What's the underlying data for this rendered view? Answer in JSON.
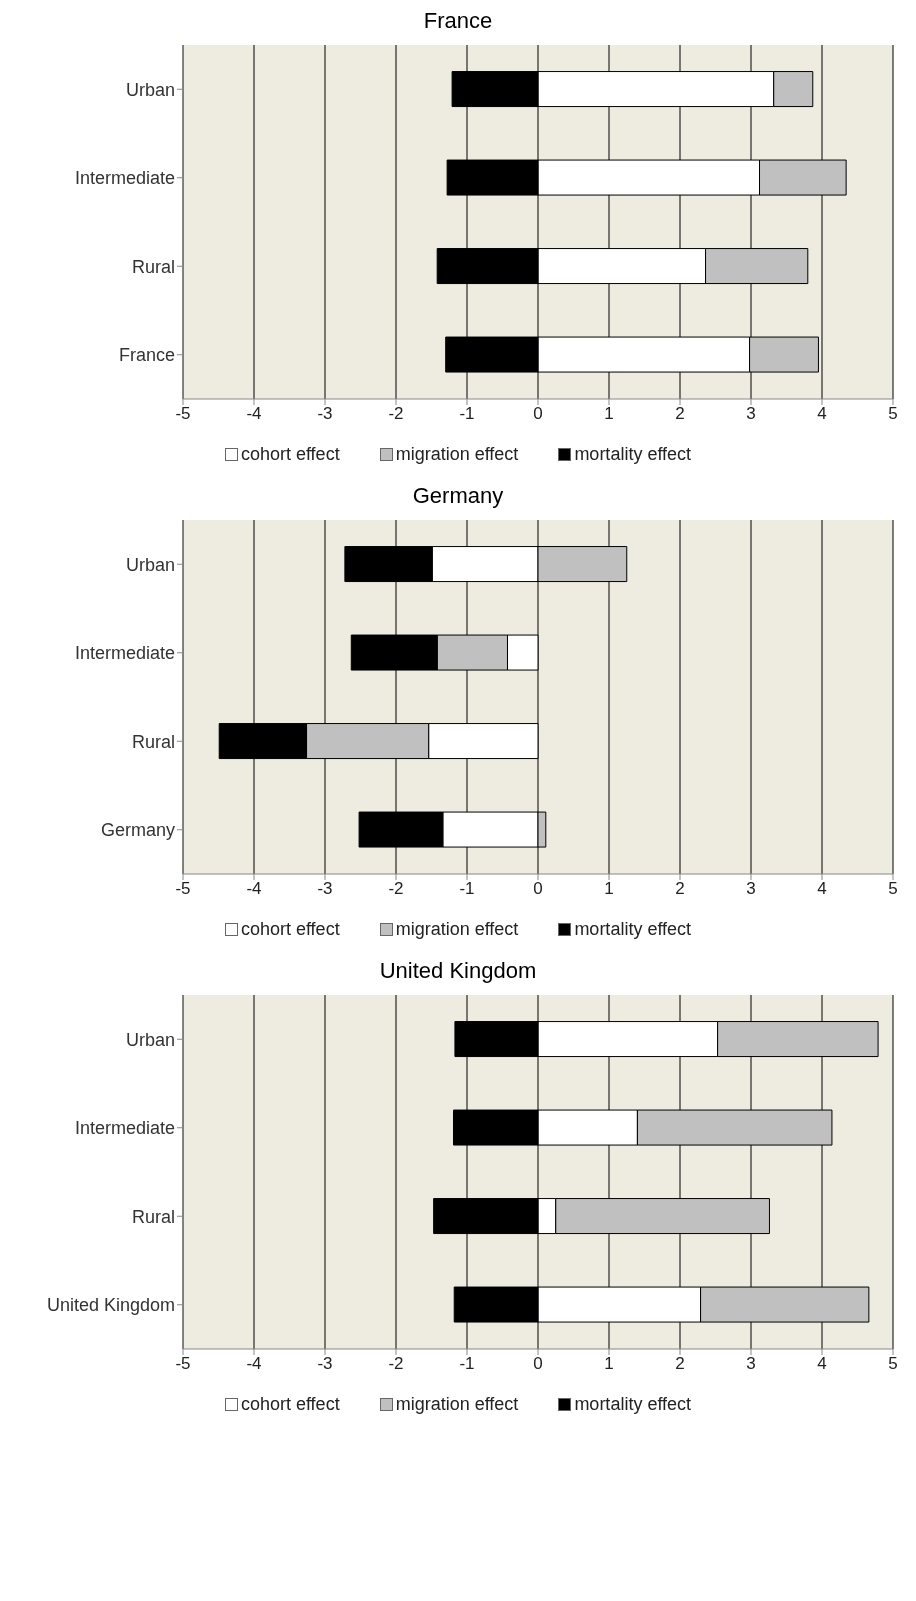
{
  "chart_data": [
    {
      "type": "bar",
      "title": "France",
      "orientation": "horizontal",
      "stacked": true,
      "categories": [
        "Urban",
        "Intermediate",
        "Rural",
        "France"
      ],
      "series": [
        {
          "name": "cohort effect",
          "color": "#ffffff",
          "values": [
            3.32,
            3.12,
            2.36,
            2.98
          ]
        },
        {
          "name": "migration effect",
          "color": "#c0c0c0",
          "values": [
            0.55,
            1.22,
            1.44,
            0.97
          ]
        },
        {
          "name": "mortality effect",
          "color": "#000000",
          "values": [
            -1.21,
            -1.28,
            -1.42,
            -1.3
          ]
        }
      ],
      "xlim": [
        -5,
        5
      ],
      "xticks": [
        -5,
        -4,
        -3,
        -2,
        -1,
        0,
        1,
        2,
        3,
        4,
        5
      ],
      "grid": "x",
      "legend": "bottom"
    },
    {
      "type": "bar",
      "title": "Germany",
      "orientation": "horizontal",
      "stacked": true,
      "categories": [
        "Urban",
        "Intermediate",
        "Rural",
        "Germany"
      ],
      "series": [
        {
          "name": "cohort effect",
          "color": "#ffffff",
          "values": [
            -1.49,
            -0.43,
            -1.54,
            -1.34
          ]
        },
        {
          "name": "migration effect",
          "color": "#c0c0c0",
          "values": [
            1.25,
            -0.99,
            -1.72,
            0.11
          ]
        },
        {
          "name": "mortality effect",
          "color": "#000000",
          "values": [
            -1.23,
            -1.21,
            -1.23,
            -1.18
          ]
        }
      ],
      "xlim": [
        -5,
        5
      ],
      "xticks": [
        -5,
        -4,
        -3,
        -2,
        -1,
        0,
        1,
        2,
        3,
        4,
        5
      ],
      "grid": "x",
      "legend": "bottom"
    },
    {
      "type": "bar",
      "title": "United Kingdom",
      "orientation": "horizontal",
      "stacked": true,
      "categories": [
        "Urban",
        "Intermediate",
        "Rural",
        "United Kingdom"
      ],
      "series": [
        {
          "name": "cohort effect",
          "color": "#ffffff",
          "values": [
            2.53,
            1.4,
            0.25,
            2.29
          ]
        },
        {
          "name": "migration effect",
          "color": "#c0c0c0",
          "values": [
            2.26,
            2.74,
            3.01,
            2.37
          ]
        },
        {
          "name": "mortality effect",
          "color": "#000000",
          "values": [
            -1.17,
            -1.19,
            -1.47,
            -1.18
          ]
        }
      ],
      "xlim": [
        -5,
        5
      ],
      "xticks": [
        -5,
        -4,
        -3,
        -2,
        -1,
        0,
        1,
        2,
        3,
        4,
        5
      ],
      "grid": "x",
      "legend": "bottom"
    }
  ]
}
